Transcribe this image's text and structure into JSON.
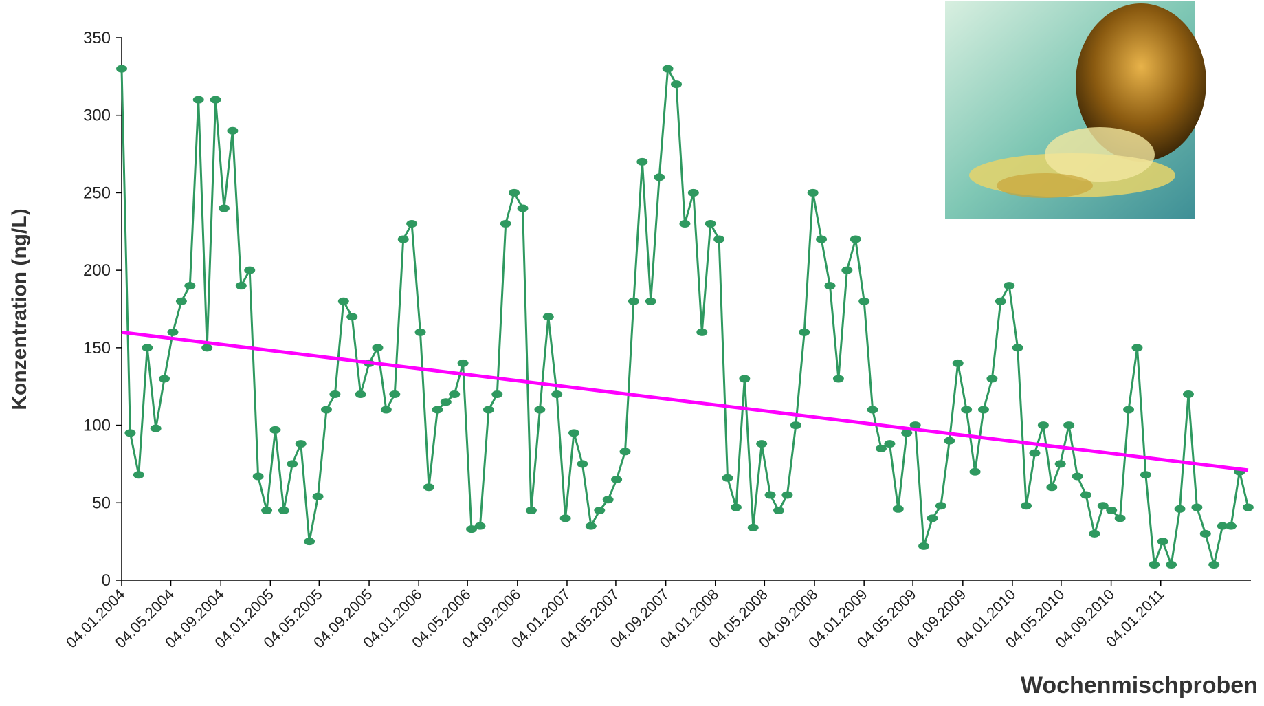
{
  "chart_data": {
    "type": "line",
    "y_label": "Konzentration (ng/L)",
    "x_label": "Wochenmischproben",
    "xlim": [
      "2004-01-04",
      "2011-08-14"
    ],
    "ylim": [
      0,
      350
    ],
    "yticks": [
      0,
      50,
      100,
      150,
      200,
      250,
      300,
      350
    ],
    "xticks": [
      {
        "value": "2004-01-04",
        "label": "04.01.2004"
      },
      {
        "value": "2004-05-04",
        "label": "04.05.2004"
      },
      {
        "value": "2004-09-04",
        "label": "04.09.2004"
      },
      {
        "value": "2005-01-04",
        "label": "04.01.2005"
      },
      {
        "value": "2005-05-04",
        "label": "04.05.2005"
      },
      {
        "value": "2005-09-04",
        "label": "04.09.2005"
      },
      {
        "value": "2006-01-04",
        "label": "04.01.2006"
      },
      {
        "value": "2006-05-04",
        "label": "04.05.2006"
      },
      {
        "value": "2006-09-04",
        "label": "04.09.2006"
      },
      {
        "value": "2007-01-04",
        "label": "04.01.2007"
      },
      {
        "value": "2007-05-04",
        "label": "04.05.2007"
      },
      {
        "value": "2007-09-04",
        "label": "04.09.2007"
      },
      {
        "value": "2008-01-04",
        "label": "04.01.2008"
      },
      {
        "value": "2008-05-04",
        "label": "04.05.2008"
      },
      {
        "value": "2008-09-04",
        "label": "04.09.2008"
      },
      {
        "value": "2009-01-04",
        "label": "04.01.2009"
      },
      {
        "value": "2009-05-04",
        "label": "04.05.2009"
      },
      {
        "value": "2009-09-04",
        "label": "04.09.2009"
      },
      {
        "value": "2010-01-04",
        "label": "04.01.2010"
      },
      {
        "value": "2010-05-04",
        "label": "04.05.2010"
      },
      {
        "value": "2010-09-04",
        "label": "04.09.2010"
      },
      {
        "value": "2011-01-04",
        "label": "04.01.2011"
      }
    ],
    "grid": false,
    "series": [
      {
        "color": "#2f9960",
        "marker": true,
        "x": [
          "2004-01-04",
          "2004-01-25",
          "2004-02-15",
          "2004-03-07",
          "2004-03-28",
          "2004-04-18",
          "2004-05-09",
          "2004-05-30",
          "2004-06-20",
          "2004-07-11",
          "2004-08-01",
          "2004-08-22",
          "2004-09-12",
          "2004-10-03",
          "2004-10-24",
          "2004-11-14",
          "2004-12-05",
          "2004-12-26",
          "2005-01-16",
          "2005-02-06",
          "2005-02-27",
          "2005-03-20",
          "2005-04-10",
          "2005-05-01",
          "2005-05-22",
          "2005-06-12",
          "2005-07-03",
          "2005-07-24",
          "2005-08-14",
          "2005-09-04",
          "2005-09-25",
          "2005-10-16",
          "2005-11-06",
          "2005-11-27",
          "2005-12-18",
          "2006-01-08",
          "2006-01-29",
          "2006-02-19",
          "2006-03-12",
          "2006-04-02",
          "2006-04-23",
          "2006-05-14",
          "2006-06-04",
          "2006-06-25",
          "2006-07-16",
          "2006-08-06",
          "2006-08-27",
          "2006-09-17",
          "2006-10-08",
          "2006-10-29",
          "2006-11-19",
          "2006-12-10",
          "2006-12-31",
          "2007-01-21",
          "2007-02-11",
          "2007-03-04",
          "2007-03-25",
          "2007-04-15",
          "2007-05-06",
          "2007-05-27",
          "2007-06-17",
          "2007-07-08",
          "2007-07-29",
          "2007-08-19",
          "2007-09-09",
          "2007-09-30",
          "2007-10-21",
          "2007-11-11",
          "2007-12-02",
          "2007-12-23",
          "2008-01-13",
          "2008-02-03",
          "2008-02-24",
          "2008-03-16",
          "2008-04-06",
          "2008-04-27",
          "2008-05-18",
          "2008-06-08",
          "2008-06-29",
          "2008-07-20",
          "2008-08-10",
          "2008-08-31",
          "2008-09-21",
          "2008-10-12",
          "2008-11-02",
          "2008-11-23",
          "2008-12-14",
          "2009-01-04",
          "2009-01-25",
          "2009-02-15",
          "2009-03-08",
          "2009-03-29",
          "2009-04-19",
          "2009-05-10",
          "2009-05-31",
          "2009-06-21",
          "2009-07-12",
          "2009-08-02",
          "2009-08-23",
          "2009-09-13",
          "2009-10-04",
          "2009-10-25",
          "2009-11-15",
          "2009-12-06",
          "2009-12-27",
          "2010-01-17",
          "2010-02-07",
          "2010-02-28",
          "2010-03-21",
          "2010-04-11",
          "2010-05-02",
          "2010-05-23",
          "2010-06-13",
          "2010-07-04",
          "2010-07-25",
          "2010-08-15",
          "2010-09-05",
          "2010-09-26",
          "2010-10-17",
          "2010-11-07",
          "2010-11-28",
          "2010-12-19",
          "2011-01-09",
          "2011-01-30",
          "2011-02-20",
          "2011-03-13",
          "2011-04-03",
          "2011-04-24",
          "2011-05-15",
          "2011-06-05",
          "2011-06-26",
          "2011-07-17",
          "2011-08-07"
        ],
        "values": [
          330,
          95,
          68,
          150,
          98,
          130,
          160,
          180,
          190,
          310,
          150,
          310,
          240,
          290,
          190,
          200,
          67,
          45,
          97,
          45,
          75,
          88,
          25,
          54,
          110,
          120,
          180,
          170,
          120,
          140,
          150,
          110,
          120,
          220,
          230,
          160,
          60,
          110,
          115,
          120,
          140,
          33,
          35,
          110,
          120,
          230,
          250,
          240,
          45,
          110,
          170,
          120,
          40,
          95,
          75,
          35,
          45,
          52,
          65,
          83,
          180,
          270,
          180,
          260,
          330,
          320,
          230,
          250,
          160,
          230,
          220,
          66,
          47,
          130,
          34,
          88,
          55,
          45,
          55,
          100,
          160,
          250,
          220,
          190,
          130,
          200,
          220,
          180,
          110,
          85,
          88,
          46,
          95,
          100,
          22,
          40,
          48,
          90,
          140,
          110,
          70,
          110,
          130,
          180,
          190,
          150,
          48,
          82,
          100,
          60,
          75,
          100,
          67,
          55,
          30,
          48,
          45,
          40,
          110,
          150,
          68,
          10,
          25,
          10,
          46,
          120,
          47,
          30,
          10,
          35,
          35,
          70,
          47
        ]
      },
      {
        "color": "#ff00ff",
        "marker": false,
        "x": [
          "2004-01-04",
          "2011-08-07"
        ],
        "values": [
          160,
          71
        ]
      }
    ]
  }
}
